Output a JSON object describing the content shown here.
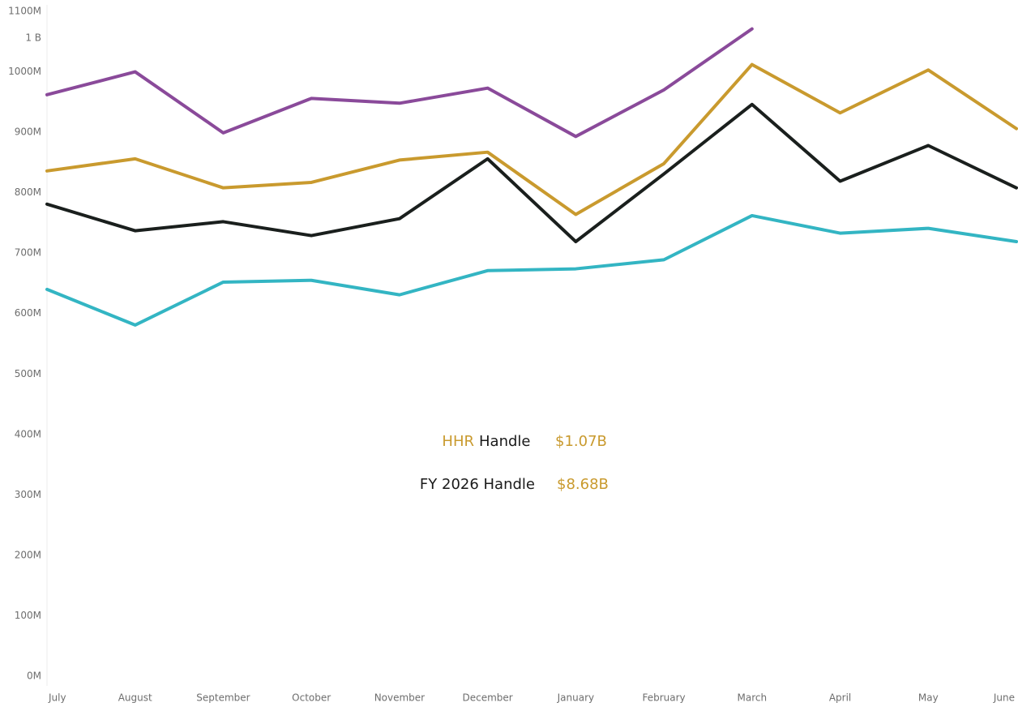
{
  "chart_data": {
    "type": "line",
    "categories": [
      "July",
      "August",
      "September",
      "October",
      "November",
      "December",
      "January",
      "February",
      "March",
      "April",
      "May",
      "June"
    ],
    "series": [
      {
        "color": "#8a4a9a",
        "values": [
          962,
          1000,
          899,
          956,
          948,
          973,
          893,
          970,
          1071,
          null,
          null,
          null
        ]
      },
      {
        "color": "#c99a2e",
        "values": [
          836,
          856,
          808,
          817,
          854,
          867,
          764,
          848,
          1012,
          932,
          1003,
          906
        ]
      },
      {
        "color": "#1a1f1d",
        "values": [
          781,
          737,
          752,
          729,
          757,
          856,
          719,
          831,
          946,
          819,
          878,
          808
        ]
      },
      {
        "color": "#33b5c3",
        "values": [
          640,
          581,
          652,
          655,
          631,
          671,
          674,
          689,
          762,
          733,
          741,
          719
        ]
      }
    ],
    "ylim": [
      0,
      1100
    ],
    "yticks": [
      {
        "value": 0,
        "label": "0M"
      },
      {
        "value": 100,
        "label": "100M"
      },
      {
        "value": 200,
        "label": "200M"
      },
      {
        "value": 300,
        "label": "300M"
      },
      {
        "value": 400,
        "label": "400M"
      },
      {
        "value": 500,
        "label": "500M"
      },
      {
        "value": 600,
        "label": "600M"
      },
      {
        "value": 700,
        "label": "700M"
      },
      {
        "value": 800,
        "label": "800M"
      },
      {
        "value": 900,
        "label": "900M"
      },
      {
        "value": 1000,
        "label": "1000M"
      },
      {
        "value": 1100,
        "label": "1100M"
      }
    ],
    "grid": false,
    "axis_note": "1 B",
    "annotations": {
      "hhr": "HHR",
      "hhr_handle": "Handle",
      "hhr_value": "$1.07B",
      "fy": "FY 2026 Handle",
      "fy_value": "$8.68B"
    }
  }
}
